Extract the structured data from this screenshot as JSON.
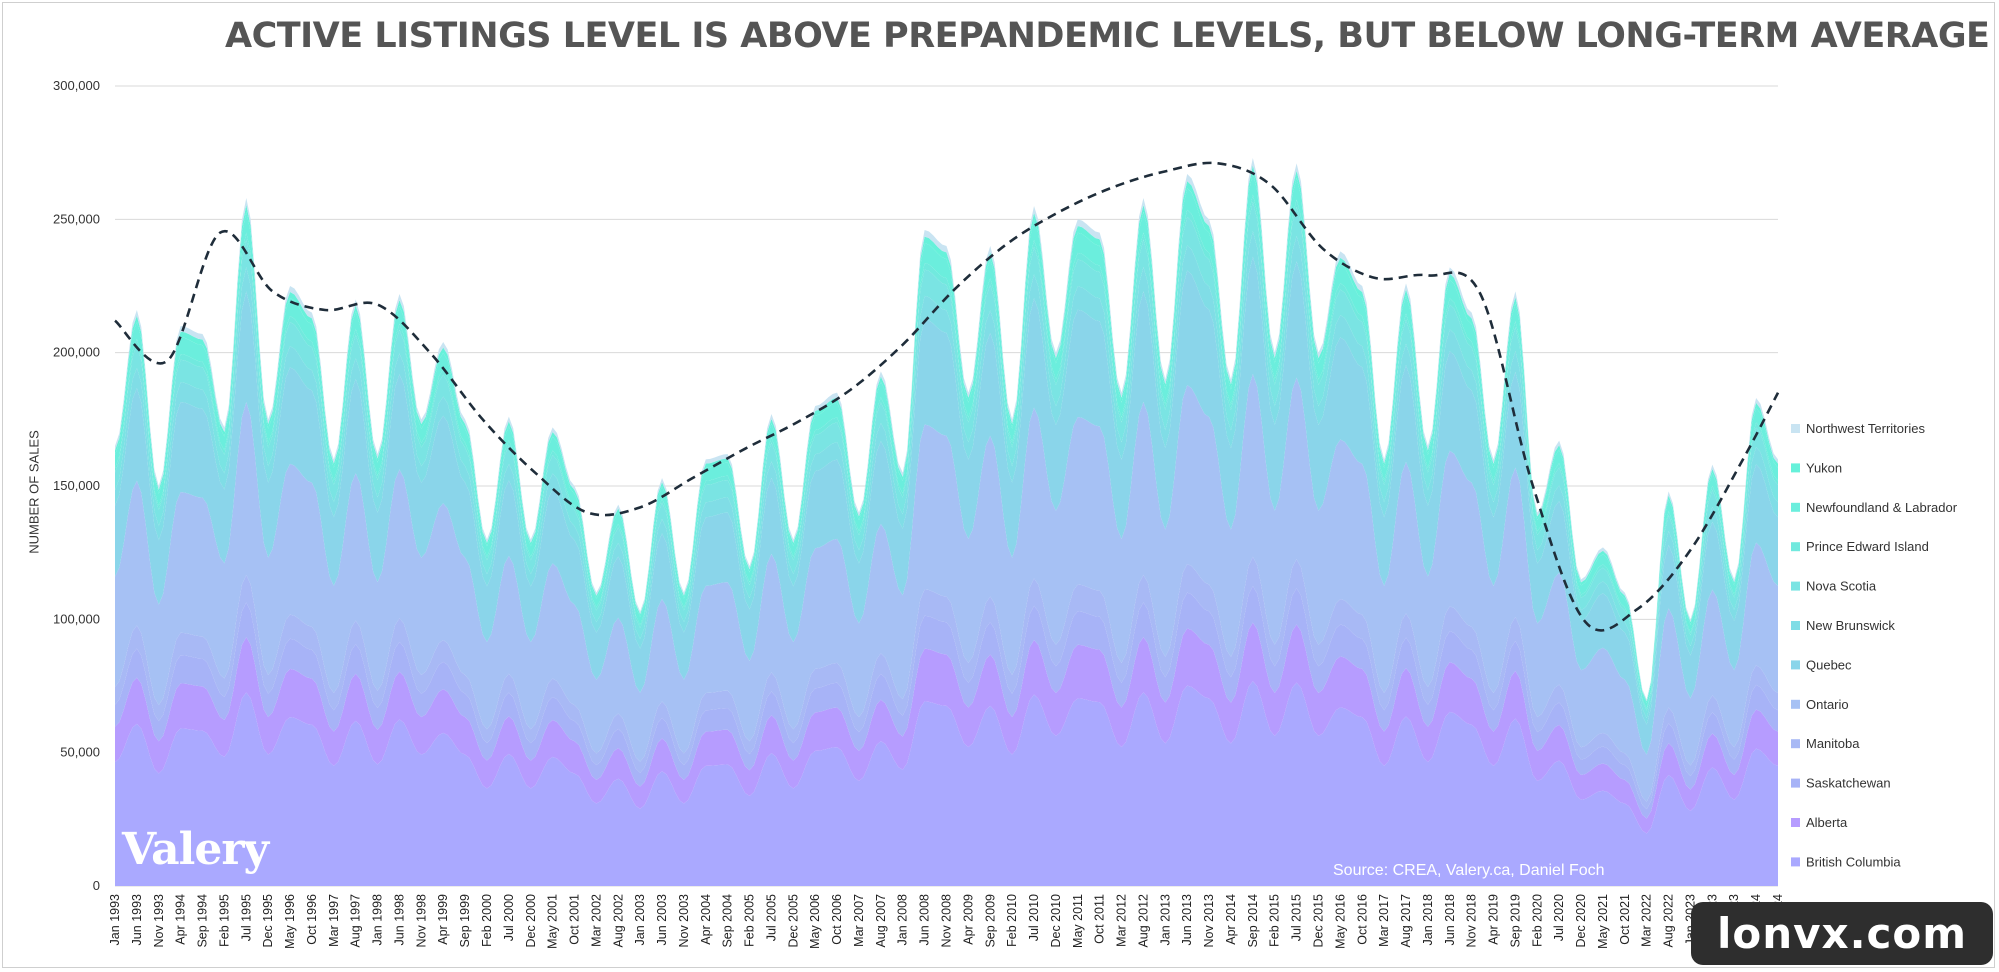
{
  "chart_data": {
    "type": "area",
    "title": "ACTIVE LISTINGS LEVEL IS ABOVE PREPANDEMIC LEVELS, BUT BELOW LONG-TERM AVERAGE",
    "ylabel": "NUMBER OF SALES",
    "xlabel": "",
    "ylim": [
      0,
      300000
    ],
    "yticks": [
      0,
      50000,
      100000,
      150000,
      200000,
      250000,
      300000
    ],
    "ytick_labels": [
      "0",
      "50,000",
      "100,000",
      "150,000",
      "200,000",
      "250,000",
      "300,000"
    ],
    "x_range": [
      "Jan 1993",
      "Mar 2024"
    ],
    "grid": true,
    "legend_position": "right",
    "stacking": "stacked",
    "xtick_labels": [
      "Jan 1993",
      "Jun 1993",
      "Nov 1993",
      "Apr 1994",
      "Sep 1994",
      "Feb 1995",
      "Jul 1995",
      "Dec 1995",
      "May 1996",
      "Oct 1996",
      "Mar 1997",
      "Aug 1997",
      "Jan 1998",
      "Jun 1998",
      "Nov 1998",
      "Apr 1999",
      "Sep 1999",
      "Feb 2000",
      "Jul 2000",
      "Dec 2000",
      "May 2001",
      "Oct 2001",
      "Mar 2002",
      "Aug 2002",
      "Jan 2003",
      "Jun 2003",
      "Nov 2003",
      "Apr 2004",
      "Sep 2004",
      "Feb 2005",
      "Jul 2005",
      "Dec 2005",
      "May 2006",
      "Oct 2006",
      "Mar 2007",
      "Aug 2007",
      "Jan 2008",
      "Jun 2008",
      "Nov 2008",
      "Apr 2009",
      "Sep 2009",
      "Feb 2010",
      "Jul 2010",
      "Dec 2010",
      "May 2011",
      "Oct 2011",
      "Mar 2012",
      "Aug 2012",
      "Jan 2013",
      "Jun 2013",
      "Nov 2013",
      "Apr 2014",
      "Sep 2014",
      "Feb 2015",
      "Jul 2015",
      "Dec 2015",
      "May 2016",
      "Oct 2016",
      "Mar 2017",
      "Aug 2017",
      "Jan 2018",
      "Jun 2018",
      "Nov 2018",
      "Apr 2019",
      "Sep 2019",
      "Feb 2020",
      "Jul 2020",
      "Dec 2020",
      "May 2021",
      "Oct 2021",
      "Mar 2022",
      "Aug 2022",
      "Jan 2023",
      "Jun 2023",
      "Nov 2023",
      "Apr 2024",
      "Sep 2024"
    ],
    "total_anchors": [
      {
        "x": "1993-01",
        "y": 165000
      },
      {
        "x": "1993-06",
        "y": 216000
      },
      {
        "x": "1993-11",
        "y": 150000
      },
      {
        "x": "1994-04",
        "y": 210000
      },
      {
        "x": "1994-09",
        "y": 207000
      },
      {
        "x": "1995-02",
        "y": 172000
      },
      {
        "x": "1995-07",
        "y": 258000
      },
      {
        "x": "1995-12",
        "y": 175000
      },
      {
        "x": "1996-05",
        "y": 225000
      },
      {
        "x": "1996-10",
        "y": 215000
      },
      {
        "x": "1997-03",
        "y": 160000
      },
      {
        "x": "1997-08",
        "y": 220000
      },
      {
        "x": "1998-01",
        "y": 162000
      },
      {
        "x": "1998-06",
        "y": 222000
      },
      {
        "x": "1998-11",
        "y": 175000
      },
      {
        "x": "1999-04",
        "y": 204000
      },
      {
        "x": "1999-09",
        "y": 175000
      },
      {
        "x": "2000-02",
        "y": 130000
      },
      {
        "x": "2000-07",
        "y": 176000
      },
      {
        "x": "2000-12",
        "y": 130000
      },
      {
        "x": "2001-05",
        "y": 172000
      },
      {
        "x": "2001-10",
        "y": 150000
      },
      {
        "x": "2002-03",
        "y": 110000
      },
      {
        "x": "2002-08",
        "y": 143000
      },
      {
        "x": "2003-01",
        "y": 103000
      },
      {
        "x": "2003-06",
        "y": 153000
      },
      {
        "x": "2003-11",
        "y": 110000
      },
      {
        "x": "2004-04",
        "y": 160000
      },
      {
        "x": "2004-09",
        "y": 162000
      },
      {
        "x": "2005-02",
        "y": 120000
      },
      {
        "x": "2005-07",
        "y": 177000
      },
      {
        "x": "2005-12",
        "y": 130000
      },
      {
        "x": "2006-05",
        "y": 180000
      },
      {
        "x": "2006-10",
        "y": 185000
      },
      {
        "x": "2007-03",
        "y": 140000
      },
      {
        "x": "2007-08",
        "y": 193000
      },
      {
        "x": "2008-01",
        "y": 155000
      },
      {
        "x": "2008-06",
        "y": 246000
      },
      {
        "x": "2008-11",
        "y": 240000
      },
      {
        "x": "2009-04",
        "y": 185000
      },
      {
        "x": "2009-09",
        "y": 240000
      },
      {
        "x": "2010-02",
        "y": 175000
      },
      {
        "x": "2010-07",
        "y": 255000
      },
      {
        "x": "2010-12",
        "y": 200000
      },
      {
        "x": "2011-05",
        "y": 250000
      },
      {
        "x": "2011-10",
        "y": 245000
      },
      {
        "x": "2012-03",
        "y": 185000
      },
      {
        "x": "2012-08",
        "y": 258000
      },
      {
        "x": "2013-01",
        "y": 190000
      },
      {
        "x": "2013-06",
        "y": 267000
      },
      {
        "x": "2013-11",
        "y": 250000
      },
      {
        "x": "2014-04",
        "y": 190000
      },
      {
        "x": "2014-09",
        "y": 273000
      },
      {
        "x": "2015-02",
        "y": 200000
      },
      {
        "x": "2015-07",
        "y": 271000
      },
      {
        "x": "2015-12",
        "y": 200000
      },
      {
        "x": "2016-05",
        "y": 238000
      },
      {
        "x": "2016-10",
        "y": 225000
      },
      {
        "x": "2017-03",
        "y": 160000
      },
      {
        "x": "2017-08",
        "y": 226000
      },
      {
        "x": "2018-01",
        "y": 165000
      },
      {
        "x": "2018-06",
        "y": 232000
      },
      {
        "x": "2018-11",
        "y": 215000
      },
      {
        "x": "2019-04",
        "y": 160000
      },
      {
        "x": "2019-09",
        "y": 223000
      },
      {
        "x": "2020-02",
        "y": 140000
      },
      {
        "x": "2020-07",
        "y": 167000
      },
      {
        "x": "2020-12",
        "y": 115000
      },
      {
        "x": "2021-05",
        "y": 127000
      },
      {
        "x": "2021-10",
        "y": 110000
      },
      {
        "x": "2022-03",
        "y": 70000
      },
      {
        "x": "2022-08",
        "y": 148000
      },
      {
        "x": "2023-01",
        "y": 100000
      },
      {
        "x": "2023-06",
        "y": 158000
      },
      {
        "x": "2023-11",
        "y": 115000
      },
      {
        "x": "2024-04",
        "y": 183000
      },
      {
        "x": "2024-09",
        "y": 160000
      }
    ],
    "trend": [
      {
        "x": "1993-01",
        "y": 212000
      },
      {
        "x": "1994-01",
        "y": 197000
      },
      {
        "x": "1995-01",
        "y": 245000
      },
      {
        "x": "1996-01",
        "y": 223000
      },
      {
        "x": "1997-01",
        "y": 216000
      },
      {
        "x": "1998-01",
        "y": 218000
      },
      {
        "x": "1999-01",
        "y": 200000
      },
      {
        "x": "2000-01",
        "y": 175000
      },
      {
        "x": "2001-01",
        "y": 155000
      },
      {
        "x": "2002-01",
        "y": 140000
      },
      {
        "x": "2003-01",
        "y": 142000
      },
      {
        "x": "2004-01",
        "y": 153000
      },
      {
        "x": "2005-01",
        "y": 164000
      },
      {
        "x": "2006-01",
        "y": 174000
      },
      {
        "x": "2007-01",
        "y": 186000
      },
      {
        "x": "2008-01",
        "y": 203000
      },
      {
        "x": "2009-01",
        "y": 224000
      },
      {
        "x": "2010-01",
        "y": 241000
      },
      {
        "x": "2011-01",
        "y": 253000
      },
      {
        "x": "2012-01",
        "y": 262000
      },
      {
        "x": "2013-01",
        "y": 268000
      },
      {
        "x": "2014-01",
        "y": 271000
      },
      {
        "x": "2015-01",
        "y": 263000
      },
      {
        "x": "2016-01",
        "y": 239000
      },
      {
        "x": "2017-01",
        "y": 228000
      },
      {
        "x": "2018-01",
        "y": 229000
      },
      {
        "x": "2019-01",
        "y": 222000
      },
      {
        "x": "2020-01",
        "y": 150000
      },
      {
        "x": "2021-01",
        "y": 99000
      },
      {
        "x": "2022-01",
        "y": 104000
      },
      {
        "x": "2023-01",
        "y": 126000
      },
      {
        "x": "2024-01",
        "y": 160000
      },
      {
        "x": "2024-09",
        "y": 185000
      }
    ],
    "series": [
      {
        "name": "British Columbia",
        "share": 0.28,
        "color": "#aaa9ff"
      },
      {
        "name": "Alberta",
        "share": 0.08,
        "color": "#b69cff"
      },
      {
        "name": "Saskatchewan",
        "share": 0.05,
        "color": "#a7b3f7"
      },
      {
        "name": "Manitoba",
        "share": 0.04,
        "color": "#a8b9f5"
      },
      {
        "name": "Ontario",
        "share": 0.25,
        "color": "#a6c1f4"
      },
      {
        "name": "Quebec",
        "share": 0.16,
        "color": "#8ad5ea"
      },
      {
        "name": "New Brunswick",
        "share": 0.035,
        "color": "#80dde6"
      },
      {
        "name": "Nova Scotia",
        "share": 0.04,
        "color": "#7ae4e3"
      },
      {
        "name": "Prince Edward Island",
        "share": 0.01,
        "color": "#71e9de"
      },
      {
        "name": "Newfoundland & Labrador",
        "share": 0.03,
        "color": "#6beedd"
      },
      {
        "name": "Yukon",
        "share": 0.01,
        "color": "#66f1da"
      },
      {
        "name": "Northwest Territories",
        "share": 0.01,
        "color": "#c9e4f2"
      }
    ],
    "source": "Source: CREA, Valery.ca, Daniel Foch"
  },
  "brand": "Valery",
  "watermark": "lonvx.com",
  "colors": {
    "gridline": "#d9d9d9",
    "trend_line": "#1f2d3a",
    "title": "#555555"
  }
}
